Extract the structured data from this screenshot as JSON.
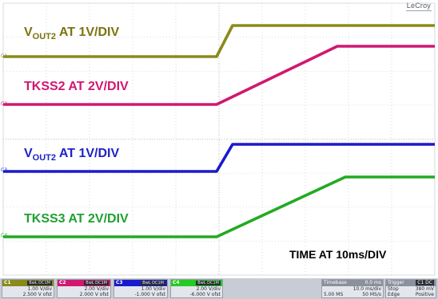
{
  "brand": "LeCroy",
  "colors": {
    "ch1": "#8a8a1a",
    "ch2": "#d01870",
    "ch3": "#1a1acc",
    "ch4": "#22aa22",
    "grid": "#b8bec8",
    "label_ch1": "#7a7410",
    "label_ch3": "#1f22c8",
    "label_ch4": "#20a030"
  },
  "traces": [
    {
      "id": "c1",
      "marker": "C1",
      "label_main": "V",
      "label_sub": "OUT2",
      "label_rest": " AT 1V/DIV"
    },
    {
      "id": "c2",
      "marker": "C2",
      "label_main": "TKSS2 AT 2V/DIV"
    },
    {
      "id": "c3",
      "marker": "C3",
      "label_main": "V",
      "label_sub": "OUT2",
      "label_rest": " AT 1V/DIV"
    },
    {
      "id": "c4",
      "marker": "C4",
      "label_main": "TKSS3 AT 2V/DIV"
    }
  ],
  "time_label": "TIME AT 10ms/DIV",
  "channels": [
    {
      "num": "C1",
      "tag": "BwL DC1M",
      "volts_div": "1.00 V/div",
      "offset": "2.500 V ofst"
    },
    {
      "num": "C2",
      "tag": "BwL DC1M",
      "volts_div": "2.00 V/div",
      "offset": "2.000 V ofst"
    },
    {
      "num": "C3",
      "tag": "BwL DC1M",
      "volts_div": "1.00 V/div",
      "offset": "-1.000 V ofst"
    },
    {
      "num": "C4",
      "tag": "BwL DC1M",
      "volts_div": "2.00 V/div",
      "offset": "-6.000 V ofst"
    }
  ],
  "timebase": {
    "label": "Timebase",
    "delay": "0.0 ms",
    "time_div": "10.0 ms/div",
    "samples": "5.00 MS",
    "rate": "50 MS/s"
  },
  "trigger": {
    "label": "Trigger",
    "source": "C1 DC",
    "mode": "Stop",
    "level": "380 mV",
    "type": "Edge",
    "slope": "Positive"
  }
}
